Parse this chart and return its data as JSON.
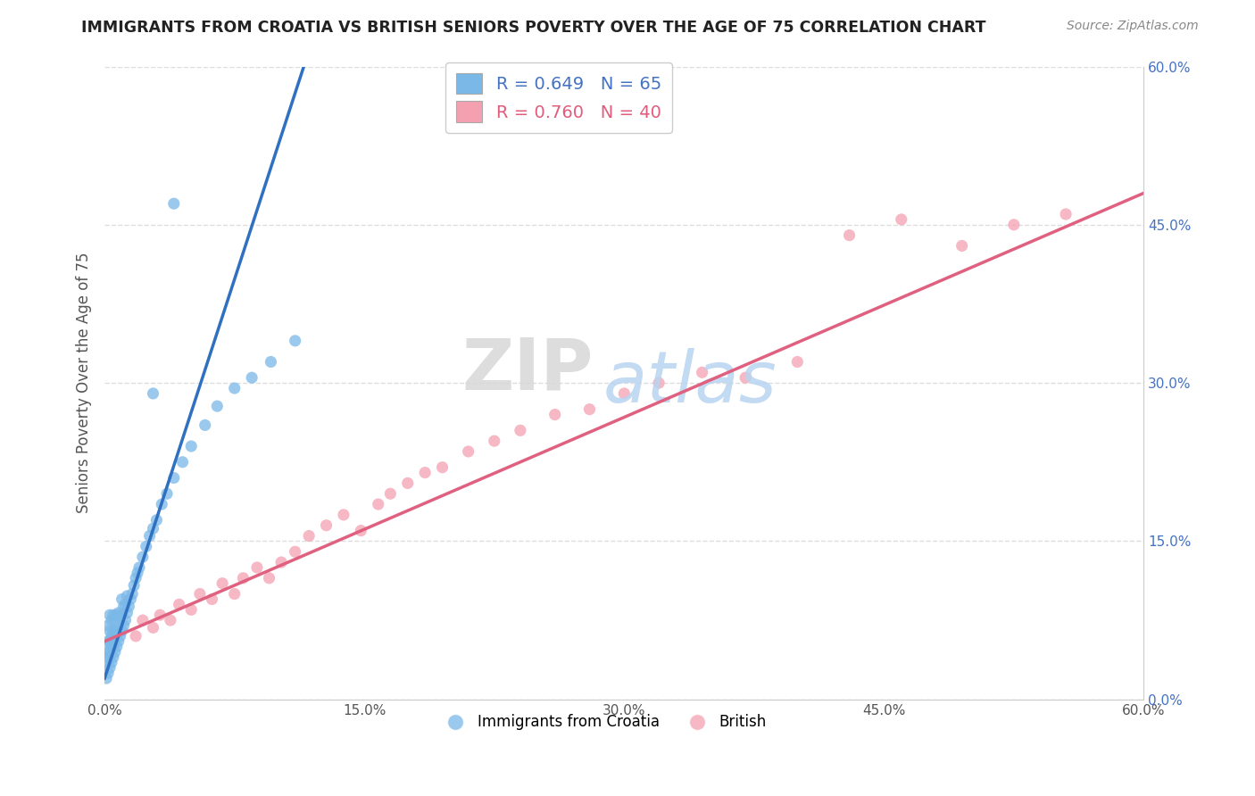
{
  "title": "IMMIGRANTS FROM CROATIA VS BRITISH SENIORS POVERTY OVER THE AGE OF 75 CORRELATION CHART",
  "source": "Source: ZipAtlas.com",
  "xlabel": "",
  "ylabel": "Seniors Poverty Over the Age of 75",
  "xlim": [
    0.0,
    0.6
  ],
  "ylim": [
    0.0,
    0.6
  ],
  "xtick_labels": [
    "0.0%",
    "15.0%",
    "30.0%",
    "45.0%",
    "60.0%"
  ],
  "xtick_vals": [
    0.0,
    0.15,
    0.3,
    0.45,
    0.6
  ],
  "ytick_vals": [
    0.0,
    0.15,
    0.3,
    0.45,
    0.6
  ],
  "right_ytick_labels": [
    "0.0%",
    "15.0%",
    "30.0%",
    "45.0%",
    "60.0%"
  ],
  "legend_r_blue": "R = 0.649",
  "legend_n_blue": "N = 65",
  "legend_r_pink": "R = 0.760",
  "legend_n_pink": "N = 40",
  "legend_label_blue": "Immigrants from Croatia",
  "legend_label_pink": "British",
  "blue_color": "#7ab8e8",
  "pink_color": "#f4a0b0",
  "blue_line_color": "#3070c0",
  "pink_line_color": "#e06080",
  "watermark_zip": "ZIP",
  "watermark_atlas": "atlas",
  "blue_scatter_x": [
    0.001,
    0.001,
    0.001,
    0.002,
    0.002,
    0.002,
    0.002,
    0.003,
    0.003,
    0.003,
    0.003,
    0.003,
    0.004,
    0.004,
    0.004,
    0.004,
    0.005,
    0.005,
    0.005,
    0.005,
    0.006,
    0.006,
    0.006,
    0.007,
    0.007,
    0.007,
    0.008,
    0.008,
    0.008,
    0.009,
    0.009,
    0.01,
    0.01,
    0.01,
    0.011,
    0.011,
    0.012,
    0.012,
    0.013,
    0.013,
    0.014,
    0.015,
    0.016,
    0.017,
    0.018,
    0.019,
    0.02,
    0.022,
    0.024,
    0.026,
    0.028,
    0.03,
    0.033,
    0.036,
    0.04,
    0.045,
    0.05,
    0.058,
    0.065,
    0.075,
    0.085,
    0.096,
    0.11,
    0.028,
    0.04
  ],
  "blue_scatter_y": [
    0.02,
    0.035,
    0.045,
    0.025,
    0.04,
    0.055,
    0.07,
    0.03,
    0.045,
    0.055,
    0.065,
    0.08,
    0.035,
    0.05,
    0.06,
    0.075,
    0.04,
    0.055,
    0.065,
    0.08,
    0.045,
    0.06,
    0.075,
    0.05,
    0.065,
    0.08,
    0.055,
    0.068,
    0.082,
    0.06,
    0.078,
    0.065,
    0.08,
    0.095,
    0.07,
    0.088,
    0.075,
    0.09,
    0.082,
    0.098,
    0.088,
    0.095,
    0.1,
    0.108,
    0.115,
    0.12,
    0.125,
    0.135,
    0.145,
    0.155,
    0.162,
    0.17,
    0.185,
    0.195,
    0.21,
    0.225,
    0.24,
    0.26,
    0.278,
    0.295,
    0.305,
    0.32,
    0.34,
    0.29,
    0.47
  ],
  "pink_scatter_x": [
    0.018,
    0.022,
    0.028,
    0.032,
    0.038,
    0.043,
    0.05,
    0.055,
    0.062,
    0.068,
    0.075,
    0.08,
    0.088,
    0.095,
    0.102,
    0.11,
    0.118,
    0.128,
    0.138,
    0.148,
    0.158,
    0.165,
    0.175,
    0.185,
    0.195,
    0.21,
    0.225,
    0.24,
    0.26,
    0.28,
    0.3,
    0.32,
    0.345,
    0.37,
    0.4,
    0.43,
    0.46,
    0.495,
    0.525,
    0.555
  ],
  "pink_scatter_y": [
    0.06,
    0.075,
    0.068,
    0.08,
    0.075,
    0.09,
    0.085,
    0.1,
    0.095,
    0.11,
    0.1,
    0.115,
    0.125,
    0.115,
    0.13,
    0.14,
    0.155,
    0.165,
    0.175,
    0.16,
    0.185,
    0.195,
    0.205,
    0.215,
    0.22,
    0.235,
    0.245,
    0.255,
    0.27,
    0.275,
    0.29,
    0.3,
    0.31,
    0.305,
    0.32,
    0.44,
    0.455,
    0.43,
    0.45,
    0.46
  ],
  "blue_line_x": [
    0.0,
    0.115
  ],
  "blue_line_y": [
    0.02,
    0.6
  ],
  "pink_line_x": [
    0.0,
    0.6
  ],
  "pink_line_y": [
    0.055,
    0.48
  ]
}
